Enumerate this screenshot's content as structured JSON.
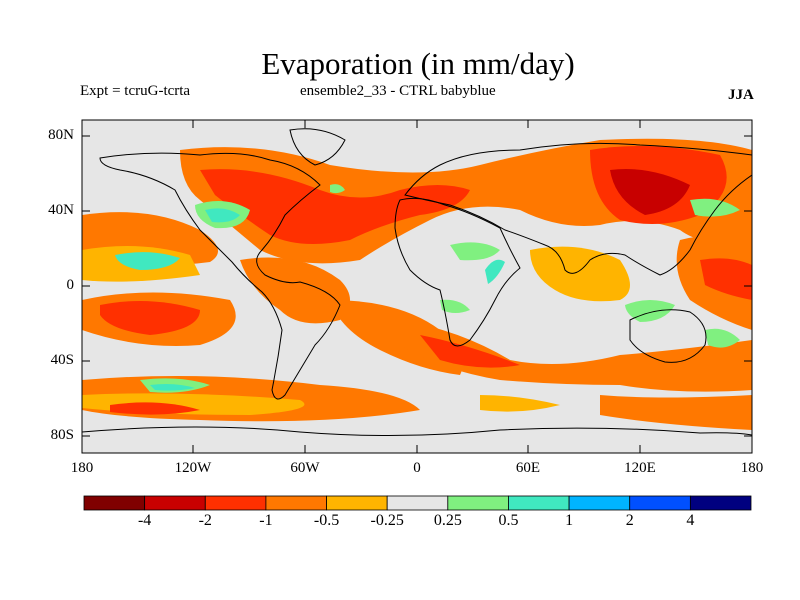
{
  "title": "Evaporation (in mm/day)",
  "expt": "Expt = tcruG-tcrta",
  "subtitle": "ensemble2_33 - CTRL babyblue",
  "season": "JJA",
  "lat_labels": [
    "80N",
    "40N",
    "0",
    "40S",
    "80S"
  ],
  "lon_labels": [
    "180",
    "120W",
    "60W",
    "0",
    "60E",
    "120E",
    "180"
  ],
  "colorbar": {
    "labels": [
      "-4",
      "-2",
      "-1",
      "-0.5",
      "-0.25",
      "0.25",
      "0.5",
      "1",
      "2",
      "4"
    ],
    "colors": [
      "#800000",
      "#c80000",
      "#ff3000",
      "#ff7800",
      "#ffb400",
      "#e6e6e6",
      "#80f080",
      "#40e8c0",
      "#00b4ff",
      "#0050ff",
      "#000080"
    ]
  },
  "colors": {
    "land_outline": "#000000",
    "background_field": "#e6e6e6"
  }
}
